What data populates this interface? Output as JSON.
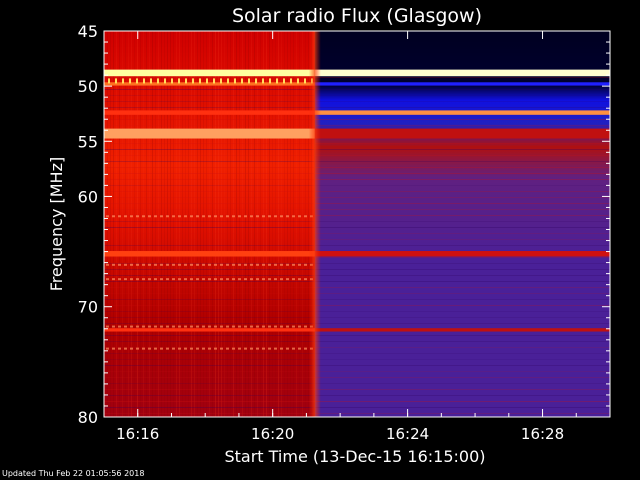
{
  "chart_data": {
    "type": "heatmap",
    "title": "Solar radio Flux (Glasgow)",
    "xlabel": "Start Time (13-Dec-15 16:15:00)",
    "ylabel": "Frequency [MHz]",
    "x_unit": "time",
    "xlim": [
      "16:15:00",
      "16:30:00"
    ],
    "ylim": [
      45,
      80
    ],
    "y_scale": "linear-inverted",
    "x_ticks": [
      "16:16",
      "16:20",
      "16:24",
      "16:28"
    ],
    "y_ticks": [
      45,
      50,
      55,
      60,
      70,
      80
    ],
    "grid": false,
    "colormap": [
      "#000020",
      "#1010c0",
      "#4020a0",
      "#b00000",
      "#ff2000",
      "#ff8040",
      "#ffe080",
      "#ffffe0"
    ],
    "transition_time": "16:21:15",
    "bands": [
      {
        "freq": 48.8,
        "width_mhz": 0.6,
        "before": "#ffffa0",
        "after": "#ffffd0"
      },
      {
        "freq": 49.8,
        "width_mhz": 0.3,
        "before": "#ff7020",
        "after": "#2020ff"
      },
      {
        "freq": 52.4,
        "width_mhz": 0.4,
        "before": "#ff3010",
        "after": "#ff9040"
      },
      {
        "freq": 54.3,
        "width_mhz": 0.9,
        "before": "#ffa060",
        "after": "#c01010"
      },
      {
        "freq": 65.2,
        "width_mhz": 0.5,
        "before": "#ff4010",
        "after": "#d01010"
      },
      {
        "freq": 72.1,
        "width_mhz": 0.3,
        "before": "#ff3010",
        "after": "#c01010"
      }
    ]
  },
  "footer": {
    "updated": "Updated Thu Feb 22 01:05:56 2018"
  }
}
